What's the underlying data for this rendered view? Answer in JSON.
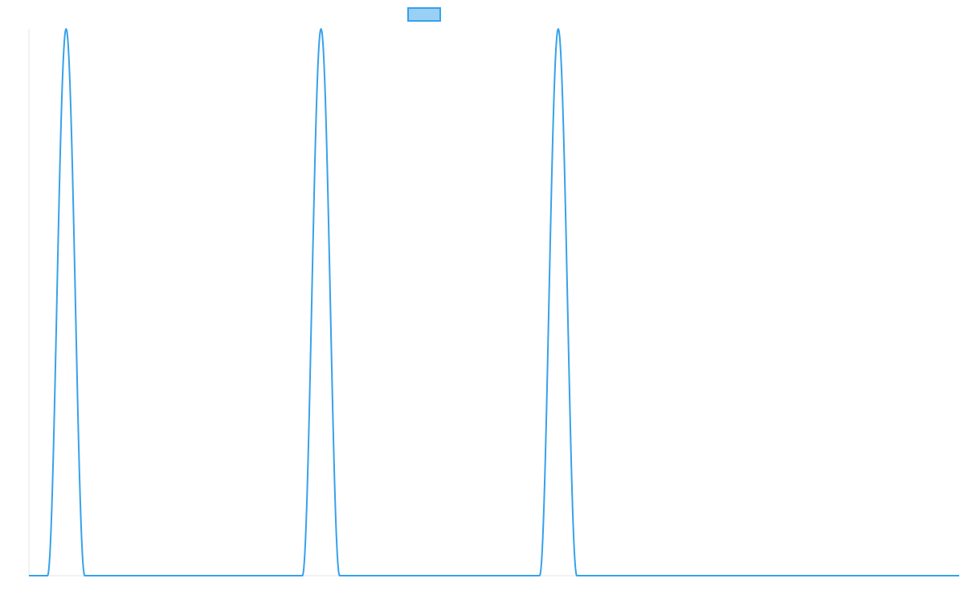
{
  "chart_data": {
    "type": "line",
    "title": "",
    "xlabel": "",
    "ylabel": "",
    "xlim": [
      0,
      1000
    ],
    "ylim": [
      0,
      1
    ],
    "grid": false,
    "legend": {
      "placement": "top-center",
      "entries": [
        {
          "label": "",
          "color": "#36a2eb",
          "fill": "#9ad0f5"
        }
      ]
    },
    "series": [
      {
        "color": "#36a2eb",
        "peaks": [
          {
            "x": 40,
            "y": 1
          },
          {
            "x": 314,
            "y": 1
          },
          {
            "x": 569,
            "y": 1
          }
        ],
        "peak_half_width": 20,
        "baseline": 0
      }
    ]
  }
}
